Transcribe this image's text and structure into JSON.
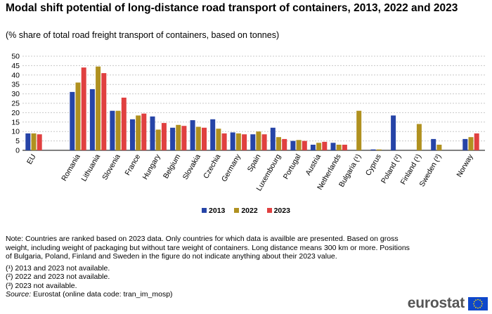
{
  "header": {
    "title": "Modal shift potential of long-distance road transport of containers, 2013, 2022 and 2023",
    "subtitle": "(% share of total road freight transport of containers, based on tonnes)"
  },
  "chart_data": {
    "type": "bar",
    "ylim": [
      0,
      50
    ],
    "yticks": [
      0,
      5,
      10,
      15,
      20,
      25,
      30,
      35,
      40,
      45,
      50
    ],
    "grid": "horizontal dashed",
    "legend_position": "bottom",
    "categories": [
      "EU",
      "Romania",
      "Lithuania",
      "Slovenia",
      "France",
      "Hungary",
      "Belgium",
      "Slovakia",
      "Czechia",
      "Germany",
      "Spain",
      "Luxembourg",
      "Portugal",
      "Austria",
      "Netherlands",
      "Bulgaria (¹)",
      "Cyprus",
      "Poland (²)",
      "Finland (¹)",
      "Sweden (³)",
      "Norway"
    ],
    "series": [
      {
        "name": "2013",
        "color": "#2644a7",
        "values": [
          9.0,
          31.0,
          32.5,
          21.0,
          16.5,
          18.0,
          12.0,
          16.0,
          16.5,
          9.5,
          8.5,
          12.0,
          5.0,
          3.0,
          4.0,
          null,
          0.5,
          18.5,
          null,
          6.0,
          6.0
        ]
      },
      {
        "name": "2022",
        "color": "#b09120",
        "values": [
          9.0,
          36.0,
          44.5,
          21.0,
          18.5,
          11.0,
          13.5,
          12.5,
          11.5,
          9.0,
          10.0,
          7.0,
          5.5,
          4.0,
          3.0,
          21.0,
          0.5,
          null,
          14.0,
          3.0,
          7.0
        ]
      },
      {
        "name": "2023",
        "color": "#e04040",
        "values": [
          8.5,
          44.0,
          41.0,
          28.0,
          19.5,
          14.5,
          13.0,
          12.0,
          9.0,
          8.5,
          8.5,
          6.0,
          5.0,
          4.5,
          3.0,
          null,
          null,
          null,
          null,
          null,
          9.0
        ]
      }
    ]
  },
  "notes": {
    "main": "Note: Countries are ranked based on 2023 data. Only countries for which data is availble are presented. Based on gross weight, including weight of packaging but without tare weight of containers. Long distance means 300 km or more. Positions of Bulgaria, Poland, Finland and Sweden in the figure do not indicate anything about their 2023 value.",
    "footnotes": [
      "(¹) 2013 and 2023 not available.",
      "(²) 2022 and 2023 not available.",
      "(³) 2023 not available."
    ],
    "source_label": "Source:",
    "source_text": " Eurostat (online data code: tran_im_mosp)"
  },
  "logo": {
    "text": "eurostat",
    "flag_color": "#0e47cb"
  }
}
